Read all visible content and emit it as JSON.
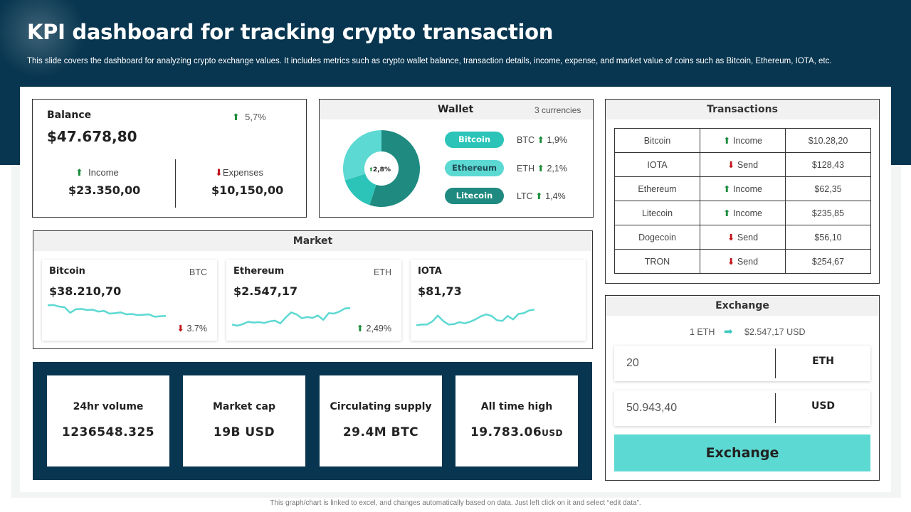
{
  "header": {
    "title": "KPI dashboard for tracking crypto transaction",
    "subtitle": "This slide covers the dashboard for analyzing crypto  exchange values. It includes metrics such as crypto wallet balance, transaction details, income, expense, and market value of coins such as Bitcoin, Ethereum, IOTA,  etc."
  },
  "balance": {
    "title": "Balance",
    "change": "5,7%",
    "value": "$47.678,80",
    "income_label": "Income",
    "income_value": "$23.350,00",
    "expenses_label": "Expenses",
    "expenses_value": "$10,150,00"
  },
  "wallet": {
    "title": "Wallet",
    "subtitle": "3 currencies",
    "center_label": "2,8%",
    "shares": [
      0.55,
      0.15,
      0.3
    ],
    "share_colors": [
      "#1f8a80",
      "#2cc4b8",
      "#5cd9d2"
    ],
    "coins": [
      {
        "name": "Bitcoin",
        "code": "BTC",
        "change": "1,9%",
        "bg": "#2cc4b8",
        "fg": "#ffffff"
      },
      {
        "name": "Ethereum",
        "code": "ETH",
        "change": "2,1%",
        "bg": "#5cd9d2",
        "fg": "#1f4b55"
      },
      {
        "name": "Litecoin",
        "code": "LTC",
        "change": "1,4%",
        "bg": "#1f8a80",
        "fg": "#ffffff"
      }
    ]
  },
  "transactions": {
    "title": "Transactions",
    "rows": [
      {
        "coin": "Bitcoin",
        "type": "Income",
        "dir": "up",
        "amount": "$10.28,20"
      },
      {
        "coin": "IOTA",
        "type": "Send",
        "dir": "down",
        "amount": "$128,43"
      },
      {
        "coin": "Ethereum",
        "type": "Income",
        "dir": "up",
        "amount": "$62,35"
      },
      {
        "coin": "Litecoin",
        "type": "Income",
        "dir": "up",
        "amount": "$235,85"
      },
      {
        "coin": "Dogecoin",
        "type": "Send",
        "dir": "down",
        "amount": "$56,10"
      },
      {
        "coin": "TRON",
        "type": "Send",
        "dir": "down",
        "amount": "$254,67"
      }
    ]
  },
  "market": {
    "title": "Market",
    "spark_color": "#5cd9d2",
    "items": [
      {
        "name": "Bitcoin",
        "code": "BTC",
        "value": "$38.210,70",
        "change": "3.7%",
        "dir": "down",
        "trend": [
          7.2,
          7.3,
          6.9,
          6.7,
          5.3,
          6.2,
          6.3,
          6.0,
          6.1,
          5.6,
          5.8,
          5.1,
          5.2,
          5.4,
          4.9,
          5.0,
          4.7,
          4.8,
          4.9,
          4.3,
          4.4,
          4.5
        ]
      },
      {
        "name": "Ethereum",
        "code": "ETH",
        "value": "$2.547,17",
        "change": "2,49%",
        "dir": "up",
        "trend": [
          2.3,
          2.0,
          2.4,
          3.0,
          2.8,
          2.9,
          2.7,
          3.1,
          3.3,
          2.6,
          4.1,
          5.4,
          4.9,
          3.9,
          4.2,
          4.0,
          4.6,
          3.5,
          5.2,
          5.1,
          5.6,
          6.4,
          6.5
        ]
      },
      {
        "name": "IOTA",
        "code": "",
        "value": "$81,73",
        "change": "",
        "trend": [
          2.1,
          2.3,
          2.3,
          3.1,
          4.6,
          3.2,
          2.3,
          2.4,
          2.9,
          2.6,
          3.0,
          3.6,
          4.4,
          4.9,
          4.5,
          3.4,
          3.2,
          4.5,
          3.6,
          5.0,
          5.2,
          5.9,
          6.1
        ]
      }
    ]
  },
  "stats": [
    {
      "label": "24hr volume",
      "value": "1236548.325",
      "unit": ""
    },
    {
      "label": "Market cap",
      "value": "19B USD",
      "unit": ""
    },
    {
      "label": "Circulating supply",
      "value": "29.4M BTC",
      "unit": ""
    },
    {
      "label": "All time high",
      "value": "19.783.06",
      "unit": "USD"
    }
  ],
  "exchange": {
    "title": "Exchange",
    "rate_from": "1 ETH",
    "rate_to": "$2.547,17 USD",
    "amount_value": "20",
    "amount_unit": "ETH",
    "result_value": "50.943,40",
    "result_unit": "USD",
    "button_label": "Exchange"
  },
  "footnote": "This graph/chart is linked to excel, and changes automatically based on data. Just left click on it and select “edit data”."
}
